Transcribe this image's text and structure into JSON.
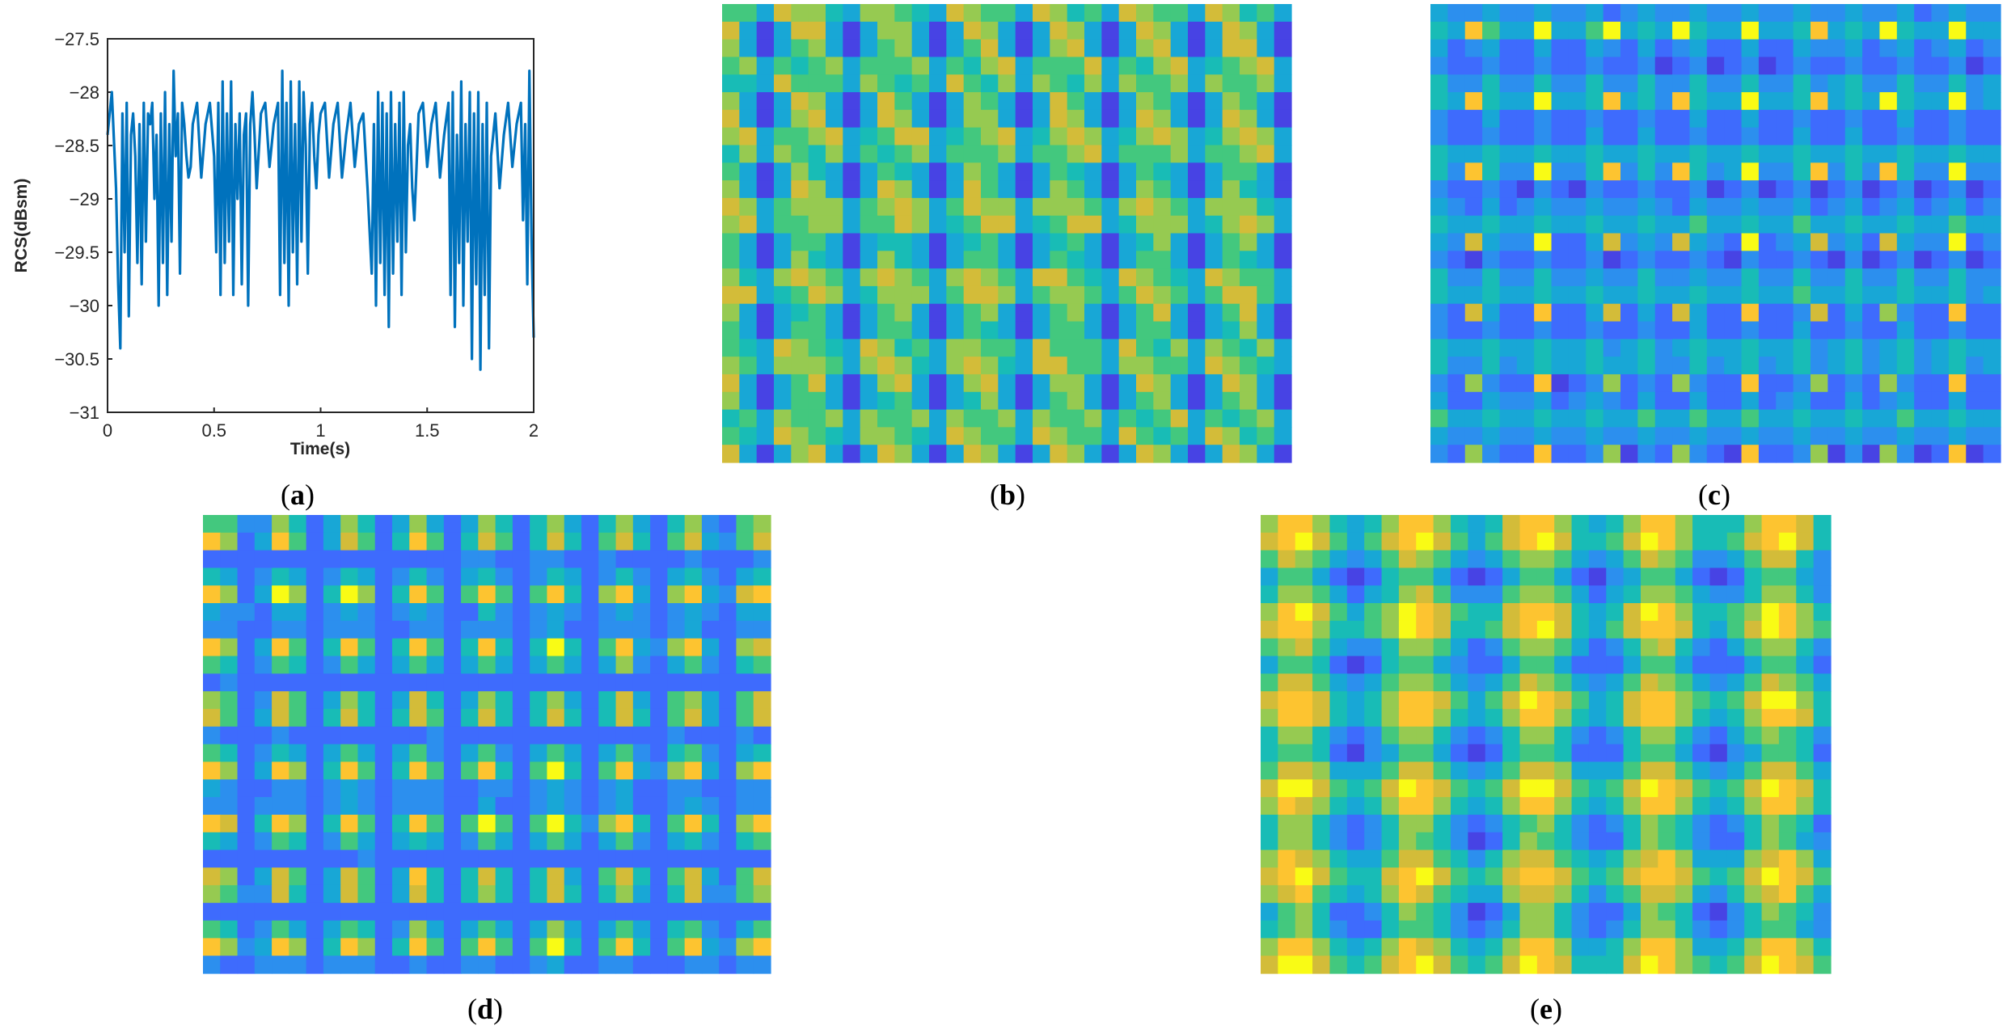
{
  "panels": {
    "a": {
      "label_open": "(",
      "letter": "a",
      "label_close": ")"
    },
    "b": {
      "label_open": "(",
      "letter": "b",
      "label_close": ")"
    },
    "c": {
      "label_open": "(",
      "letter": "c",
      "label_close": ")"
    },
    "d": {
      "label_open": "(",
      "letter": "d",
      "label_close": ")"
    },
    "e": {
      "label_open": "(",
      "letter": "e",
      "label_close": ")"
    }
  },
  "colors": {
    "line": "#0072BD",
    "parula": [
      "#3E26A8",
      "#4743E4",
      "#3E6BFD",
      "#2C8FEE",
      "#18A7D6",
      "#18BCB6",
      "#43C87E",
      "#96CA51",
      "#D3BC39",
      "#FDC430",
      "#F9FB15"
    ]
  },
  "chart_data": [
    {
      "type": "line",
      "xlabel": "Time(s)",
      "ylabel": "RCS(dBsm)",
      "xlim": [
        0,
        2
      ],
      "ylim": [
        -31,
        -27.5
      ],
      "xticks": [
        0,
        0.5,
        1,
        1.5,
        2
      ],
      "xtick_labels": [
        "0",
        "0.5",
        "1",
        "1.5",
        "2"
      ],
      "yticks": [
        -27.5,
        -28,
        -28.5,
        -29,
        -29.5,
        -30,
        -30.5,
        -31
      ],
      "ytick_labels": [
        "−27.5",
        "−28",
        "−28.5",
        "−29",
        "−29.5",
        "−30",
        "−30.5",
        "−31"
      ],
      "series": [
        {
          "x": [
            0,
            0.02,
            0.04,
            0.05,
            0.06,
            0.07,
            0.08,
            0.09,
            0.1,
            0.11,
            0.12,
            0.13,
            0.14,
            0.15,
            0.16,
            0.17,
            0.18,
            0.19,
            0.2,
            0.21,
            0.22,
            0.23,
            0.24,
            0.25,
            0.26,
            0.27,
            0.28,
            0.29,
            0.3,
            0.31,
            0.32,
            0.33,
            0.34,
            0.35,
            0.36,
            0.37,
            0.38,
            0.39,
            0.4,
            0.42,
            0.44,
            0.46,
            0.48,
            0.5,
            0.51,
            0.52,
            0.53,
            0.54,
            0.55,
            0.56,
            0.57,
            0.58,
            0.59,
            0.6,
            0.61,
            0.62,
            0.63,
            0.64,
            0.65,
            0.66,
            0.67,
            0.68,
            0.69,
            0.7,
            0.72,
            0.74,
            0.76,
            0.78,
            0.8,
            0.81,
            0.82,
            0.83,
            0.84,
            0.85,
            0.86,
            0.87,
            0.88,
            0.89,
            0.9,
            0.91,
            0.92,
            0.93,
            0.94,
            0.95,
            0.96,
            0.97,
            0.98,
            0.99,
            1.0,
            1.02,
            1.04,
            1.06,
            1.08,
            1.1,
            1.12,
            1.14,
            1.16,
            1.18,
            1.2,
            1.22,
            1.24,
            1.25,
            1.26,
            1.27,
            1.28,
            1.29,
            1.3,
            1.31,
            1.32,
            1.33,
            1.34,
            1.35,
            1.36,
            1.37,
            1.38,
            1.39,
            1.4,
            1.41,
            1.42,
            1.43,
            1.44,
            1.45,
            1.46,
            1.48,
            1.5,
            1.52,
            1.54,
            1.56,
            1.58,
            1.6,
            1.61,
            1.62,
            1.63,
            1.64,
            1.65,
            1.66,
            1.67,
            1.68,
            1.69,
            1.7,
            1.71,
            1.72,
            1.73,
            1.74,
            1.75,
            1.76,
            1.77,
            1.78,
            1.79,
            1.8,
            1.82,
            1.84,
            1.86,
            1.88,
            1.9,
            1.92,
            1.94,
            1.95,
            1.96,
            1.97,
            1.98,
            1.99,
            2.0
          ],
          "y": [
            -28.4,
            -28.0,
            -28.9,
            -29.8,
            -30.4,
            -28.2,
            -29.5,
            -28.1,
            -30.1,
            -28.4,
            -28.2,
            -28.6,
            -29.6,
            -28.3,
            -29.8,
            -28.1,
            -29.4,
            -28.2,
            -28.3,
            -28.1,
            -29.0,
            -28.4,
            -30.0,
            -28.2,
            -29.6,
            -28.0,
            -29.9,
            -28.3,
            -29.4,
            -27.8,
            -28.6,
            -28.2,
            -29.7,
            -28.1,
            -28.3,
            -28.6,
            -28.8,
            -28.7,
            -28.3,
            -28.1,
            -28.8,
            -28.3,
            -28.1,
            -28.6,
            -29.5,
            -28.1,
            -29.9,
            -27.9,
            -29.6,
            -28.2,
            -29.4,
            -27.9,
            -29.9,
            -28.3,
            -29.0,
            -28.2,
            -29.8,
            -28.4,
            -28.2,
            -30.0,
            -28.3,
            -28.0,
            -28.4,
            -28.9,
            -28.2,
            -28.1,
            -28.7,
            -28.3,
            -28.1,
            -29.9,
            -27.8,
            -29.6,
            -28.1,
            -30.0,
            -27.9,
            -29.5,
            -28.3,
            -29.8,
            -27.9,
            -29.4,
            -28.0,
            -28.5,
            -29.7,
            -28.3,
            -28.1,
            -28.6,
            -28.9,
            -28.4,
            -28.2,
            -28.1,
            -28.8,
            -28.3,
            -28.1,
            -28.8,
            -28.4,
            -28.1,
            -28.7,
            -28.3,
            -28.2,
            -28.9,
            -29.7,
            -28.3,
            -30.0,
            -28.0,
            -29.6,
            -28.1,
            -29.9,
            -28.2,
            -30.2,
            -28.0,
            -29.7,
            -28.3,
            -29.4,
            -28.1,
            -29.9,
            -28.0,
            -29.5,
            -28.5,
            -28.3,
            -28.9,
            -29.2,
            -28.7,
            -28.2,
            -28.1,
            -28.7,
            -28.3,
            -28.1,
            -28.8,
            -28.4,
            -28.1,
            -29.9,
            -28.0,
            -30.2,
            -28.4,
            -29.6,
            -27.9,
            -30.0,
            -28.3,
            -29.4,
            -28.0,
            -30.5,
            -28.2,
            -29.8,
            -28.0,
            -30.6,
            -28.3,
            -29.9,
            -28.1,
            -30.4,
            -28.6,
            -28.2,
            -28.9,
            -28.4,
            -28.1,
            -28.7,
            -28.3,
            -28.1,
            -29.2,
            -28.3,
            -29.8,
            -27.8,
            -29.4,
            -30.3
          ]
        }
      ]
    },
    {
      "type": "heatmap",
      "panel": "b",
      "rows": 26,
      "cols": 33,
      "pattern": "periodic blue-cored tiles on yellow-green background"
    },
    {
      "type": "heatmap",
      "panel": "c",
      "rows": 26,
      "cols": 33,
      "pattern": "blue grid with bright yellow cross points"
    },
    {
      "type": "heatmap",
      "panel": "d",
      "rows": 26,
      "cols": 33,
      "pattern": "blue/cyan plaid with yellow intersections"
    },
    {
      "type": "heatmap",
      "panel": "e",
      "rows": 26,
      "cols": 33,
      "pattern": "yellow/teal plaid with dark blue bands"
    }
  ]
}
